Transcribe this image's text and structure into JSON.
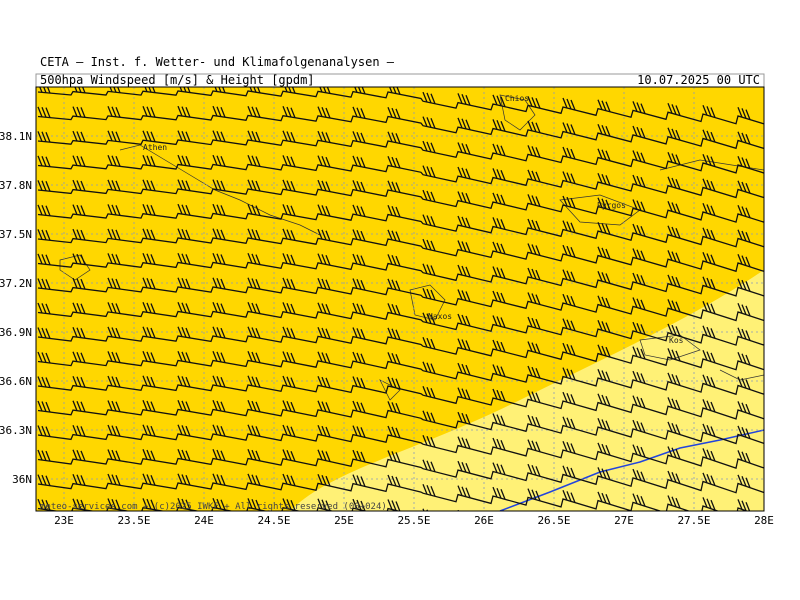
{
  "header": {
    "institute": "CETA — Inst. f. Wetter- und Klimafolgenanalysen —",
    "product": "500hpa Windspeed [m/s] & Height [gpdm]",
    "valid_time": "10.07.2025 00 UTC"
  },
  "lat_labels": [
    "38.1N",
    "37.8N",
    "37.5N",
    "37.2N",
    "36.9N",
    "36.6N",
    "36.3N",
    "36N"
  ],
  "lon_labels": [
    "23E",
    "23.5E",
    "24E",
    "24.5E",
    "25E",
    "25.5E",
    "26E",
    "26.5E",
    "27E",
    "27.5E",
    "28E"
  ],
  "places": [
    "Chios",
    "Athen",
    "Pyrgos",
    "Naxos",
    "Kos"
  ],
  "footer": "meteo-services.com + (c)2025 IWKF + All rights reserved (00+024)"
}
